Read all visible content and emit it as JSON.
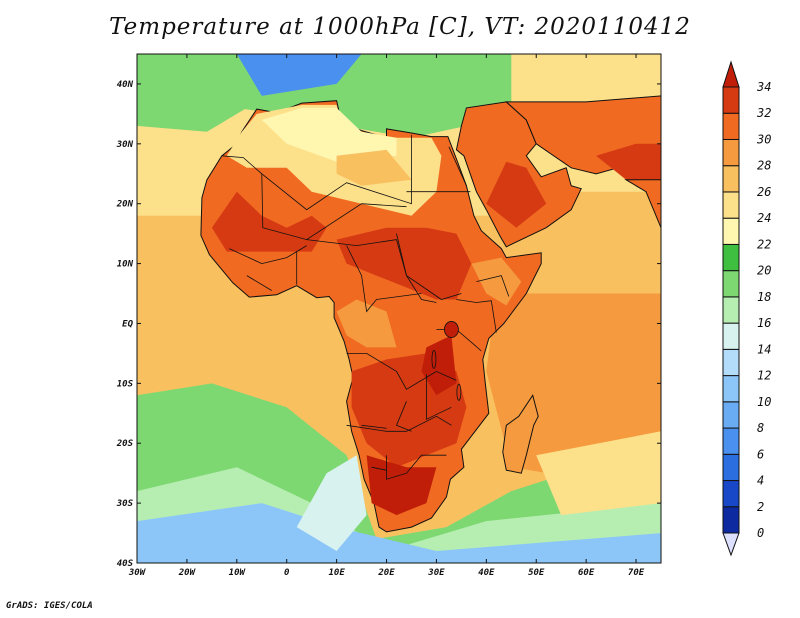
{
  "title": "Temperature at 1000hPa [C], VT: 2020110412",
  "credit": "GrADS: IGES/COLA",
  "lon_ticks": [
    "30W",
    "20W",
    "10W",
    "0",
    "10E",
    "20E",
    "30E",
    "40E",
    "50E",
    "60E",
    "70E"
  ],
  "lat_ticks": [
    "40N",
    "30N",
    "20N",
    "10N",
    "EQ",
    "10S",
    "20S",
    "30S",
    "40S"
  ],
  "colorbar": {
    "labels": [
      "0",
      "2",
      "4",
      "6",
      "8",
      "10",
      "12",
      "14",
      "16",
      "18",
      "20",
      "22",
      "24",
      "26",
      "28",
      "30",
      "32",
      "34"
    ],
    "colors": [
      "#0a0a6e",
      "#0d2aa0",
      "#1848c8",
      "#2a6ee0",
      "#4a90ee",
      "#6aacf4",
      "#8cc6f8",
      "#b2dcfa",
      "#d8f2f0",
      "#b6eeb2",
      "#7ed872",
      "#3fbf3f",
      "#fff6b0",
      "#fde08a",
      "#f9c060",
      "#f59a3e",
      "#f06a22",
      "#d63a12",
      "#c01e08"
    ]
  },
  "map": {
    "lon_range": [
      -30,
      75
    ],
    "lat_range": [
      -40,
      45
    ],
    "ocean_colors": {
      "north_atlantic": "#fde08a",
      "tropical_atlantic": "#f9c060",
      "south_atlantic_cool": "#7ed872",
      "southern_ocean": "#8cc6f8",
      "indian_ocean": "#f59a3e",
      "mediterranean": "#7ed872"
    },
    "land_colors": {
      "sahel": "#f06a22",
      "central": "#d63a12",
      "sahara": "#fde08a",
      "south_africa": "#d63a12",
      "arabia": "#f06a22",
      "europe": "#7ed872"
    }
  }
}
